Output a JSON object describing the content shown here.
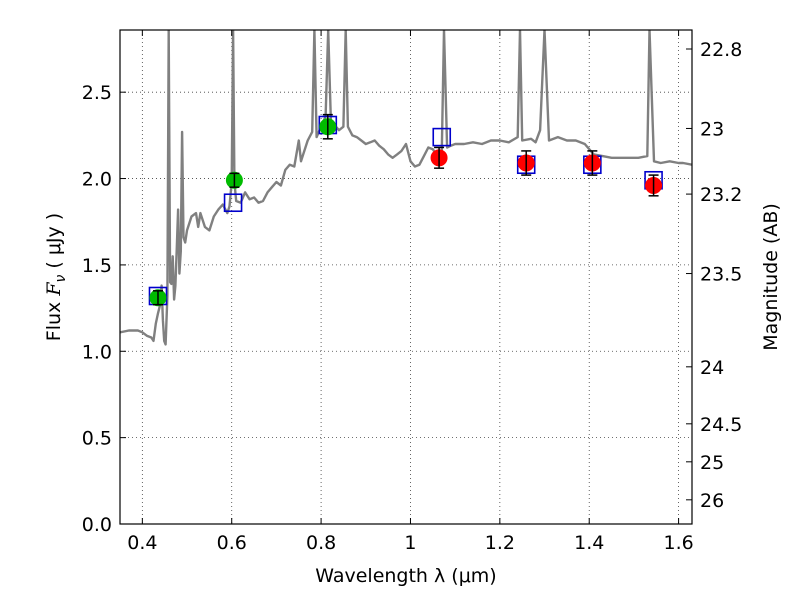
{
  "chart_data": {
    "type": "scatter",
    "title": "",
    "xlabel": "Wavelength  λ (μm)",
    "ylabel_prefix": "Flux  ",
    "ylabel_var": "F",
    "ylabel_sub": "ν",
    "ylabel_unit": "  ( μJy )",
    "y2label": "Magnitude (AB)",
    "xlim": [
      0.35,
      1.63
    ],
    "ylim": [
      0.0,
      2.86
    ],
    "grid": true,
    "x_ticks": [
      {
        "value": 0.4,
        "label": "0.4"
      },
      {
        "value": 0.6,
        "label": "0.6"
      },
      {
        "value": 0.8,
        "label": "0.8"
      },
      {
        "value": 1.0,
        "label": "1"
      },
      {
        "value": 1.2,
        "label": "1.2"
      },
      {
        "value": 1.4,
        "label": "1.4"
      },
      {
        "value": 1.6,
        "label": "1.6"
      }
    ],
    "y_ticks": [
      {
        "value": 0.0,
        "label": "0.0"
      },
      {
        "value": 0.5,
        "label": "0.5"
      },
      {
        "value": 1.0,
        "label": "1.0"
      },
      {
        "value": 1.5,
        "label": "1.5"
      },
      {
        "value": 2.0,
        "label": "2.0"
      },
      {
        "value": 2.5,
        "label": "2.5"
      }
    ],
    "y2_ticks": [
      {
        "label": "22.8",
        "flux": 2.75
      },
      {
        "label": "23",
        "flux": 2.29
      },
      {
        "label": "23.2",
        "flux": 1.91
      },
      {
        "label": "23.5",
        "flux": 1.45
      },
      {
        "label": "24",
        "flux": 0.91
      },
      {
        "label": "24.5",
        "flux": 0.58
      },
      {
        "label": "25",
        "flux": 0.36
      },
      {
        "label": "26",
        "flux": 0.14
      }
    ],
    "colors": {
      "spectrum": "#808080",
      "observed_optical": "#00bb00",
      "observed_nir": "#ff0000",
      "model_box": "#0000cc",
      "errorbar": "#000000"
    },
    "series": [
      {
        "kind": "line",
        "points": [
          [
            0.35,
            1.11
          ],
          [
            0.37,
            1.12
          ],
          [
            0.39,
            1.12
          ],
          [
            0.4,
            1.11
          ],
          [
            0.41,
            1.09
          ],
          [
            0.42,
            1.08
          ],
          [
            0.425,
            1.06
          ],
          [
            0.43,
            1.16
          ],
          [
            0.435,
            1.22
          ],
          [
            0.44,
            1.27
          ],
          [
            0.443,
            1.38
          ],
          [
            0.446,
            1.18
          ],
          [
            0.449,
            1.06
          ],
          [
            0.452,
            1.04
          ],
          [
            0.456,
            1.32
          ],
          [
            0.459,
            2.86
          ],
          [
            0.462,
            1.4
          ],
          [
            0.465,
            1.39
          ],
          [
            0.468,
            1.55
          ],
          [
            0.471,
            1.3
          ],
          [
            0.474,
            1.38
          ],
          [
            0.477,
            1.6
          ],
          [
            0.48,
            1.82
          ],
          [
            0.483,
            1.45
          ],
          [
            0.486,
            1.58
          ],
          [
            0.489,
            2.27
          ],
          [
            0.492,
            1.66
          ],
          [
            0.496,
            1.63
          ],
          [
            0.5,
            1.7
          ],
          [
            0.51,
            1.78
          ],
          [
            0.52,
            1.8
          ],
          [
            0.525,
            1.72
          ],
          [
            0.53,
            1.8
          ],
          [
            0.54,
            1.72
          ],
          [
            0.55,
            1.7
          ],
          [
            0.56,
            1.78
          ],
          [
            0.57,
            1.82
          ],
          [
            0.58,
            1.85
          ],
          [
            0.59,
            1.8
          ],
          [
            0.595,
            1.84
          ],
          [
            0.6,
            1.98
          ],
          [
            0.603,
            2.86
          ],
          [
            0.606,
            1.98
          ],
          [
            0.61,
            1.87
          ],
          [
            0.62,
            1.86
          ],
          [
            0.63,
            1.92
          ],
          [
            0.64,
            1.88
          ],
          [
            0.65,
            1.89
          ],
          [
            0.66,
            1.86
          ],
          [
            0.67,
            1.87
          ],
          [
            0.68,
            1.92
          ],
          [
            0.69,
            1.95
          ],
          [
            0.7,
            1.98
          ],
          [
            0.71,
            1.96
          ],
          [
            0.72,
            2.05
          ],
          [
            0.73,
            2.08
          ],
          [
            0.74,
            2.07
          ],
          [
            0.75,
            2.22
          ],
          [
            0.755,
            2.1
          ],
          [
            0.76,
            2.14
          ],
          [
            0.77,
            2.22
          ],
          [
            0.78,
            2.27
          ],
          [
            0.785,
            2.86
          ],
          [
            0.79,
            2.24
          ],
          [
            0.8,
            2.3
          ],
          [
            0.81,
            2.36
          ],
          [
            0.816,
            2.86
          ],
          [
            0.822,
            2.33
          ],
          [
            0.83,
            2.31
          ],
          [
            0.84,
            2.28
          ],
          [
            0.85,
            2.3
          ],
          [
            0.855,
            2.86
          ],
          [
            0.86,
            2.3
          ],
          [
            0.87,
            2.25
          ],
          [
            0.88,
            2.24
          ],
          [
            0.89,
            2.22
          ],
          [
            0.9,
            2.2
          ],
          [
            0.91,
            2.21
          ],
          [
            0.92,
            2.22
          ],
          [
            0.93,
            2.19
          ],
          [
            0.94,
            2.17
          ],
          [
            0.95,
            2.14
          ],
          [
            0.96,
            2.12
          ],
          [
            0.97,
            2.14
          ],
          [
            0.98,
            2.16
          ],
          [
            0.99,
            2.2
          ],
          [
            1.0,
            2.1
          ],
          [
            1.01,
            2.07
          ],
          [
            1.02,
            2.08
          ],
          [
            1.03,
            2.13
          ],
          [
            1.04,
            2.18
          ],
          [
            1.05,
            2.17
          ],
          [
            1.06,
            2.13
          ],
          [
            1.07,
            2.16
          ],
          [
            1.075,
            2.86
          ],
          [
            1.082,
            2.18
          ],
          [
            1.09,
            2.19
          ],
          [
            1.1,
            2.2
          ],
          [
            1.12,
            2.2
          ],
          [
            1.14,
            2.21
          ],
          [
            1.16,
            2.2
          ],
          [
            1.18,
            2.22
          ],
          [
            1.2,
            2.22
          ],
          [
            1.22,
            2.21
          ],
          [
            1.24,
            2.24
          ],
          [
            1.245,
            2.86
          ],
          [
            1.25,
            2.22
          ],
          [
            1.27,
            2.23
          ],
          [
            1.28,
            2.21
          ],
          [
            1.29,
            2.28
          ],
          [
            1.3,
            2.86
          ],
          [
            1.31,
            2.22
          ],
          [
            1.33,
            2.24
          ],
          [
            1.35,
            2.22
          ],
          [
            1.37,
            2.22
          ],
          [
            1.39,
            2.2
          ],
          [
            1.41,
            2.14
          ],
          [
            1.43,
            2.13
          ],
          [
            1.45,
            2.12
          ],
          [
            1.47,
            2.12
          ],
          [
            1.49,
            2.12
          ],
          [
            1.51,
            2.12
          ],
          [
            1.53,
            2.13
          ],
          [
            1.535,
            2.86
          ],
          [
            1.545,
            2.1
          ],
          [
            1.56,
            2.09
          ],
          [
            1.58,
            2.1
          ],
          [
            1.6,
            2.09
          ],
          [
            1.61,
            2.09
          ],
          [
            1.63,
            2.08
          ]
        ]
      },
      {
        "kind": "scatter",
        "points": [
          {
            "x": 0.435,
            "y": 1.31,
            "err": 0.04
          },
          {
            "x": 0.606,
            "y": 1.99,
            "err": 0.04
          },
          {
            "x": 0.815,
            "y": 2.3,
            "err": 0.07
          }
        ]
      },
      {
        "kind": "scatter",
        "points": [
          {
            "x": 1.064,
            "y": 2.12,
            "err": 0.06
          },
          {
            "x": 1.259,
            "y": 2.09,
            "err": 0.07
          },
          {
            "x": 1.407,
            "y": 2.09,
            "err": 0.07
          },
          {
            "x": 1.544,
            "y": 1.96,
            "err": 0.06
          }
        ]
      },
      {
        "kind": "box",
        "points": [
          {
            "x": 0.435,
            "y": 1.32
          },
          {
            "x": 0.603,
            "y": 1.86
          },
          {
            "x": 0.815,
            "y": 2.31
          },
          {
            "x": 1.07,
            "y": 2.24
          },
          {
            "x": 1.259,
            "y": 2.08
          },
          {
            "x": 1.407,
            "y": 2.08
          },
          {
            "x": 1.544,
            "y": 1.99
          }
        ]
      }
    ]
  }
}
